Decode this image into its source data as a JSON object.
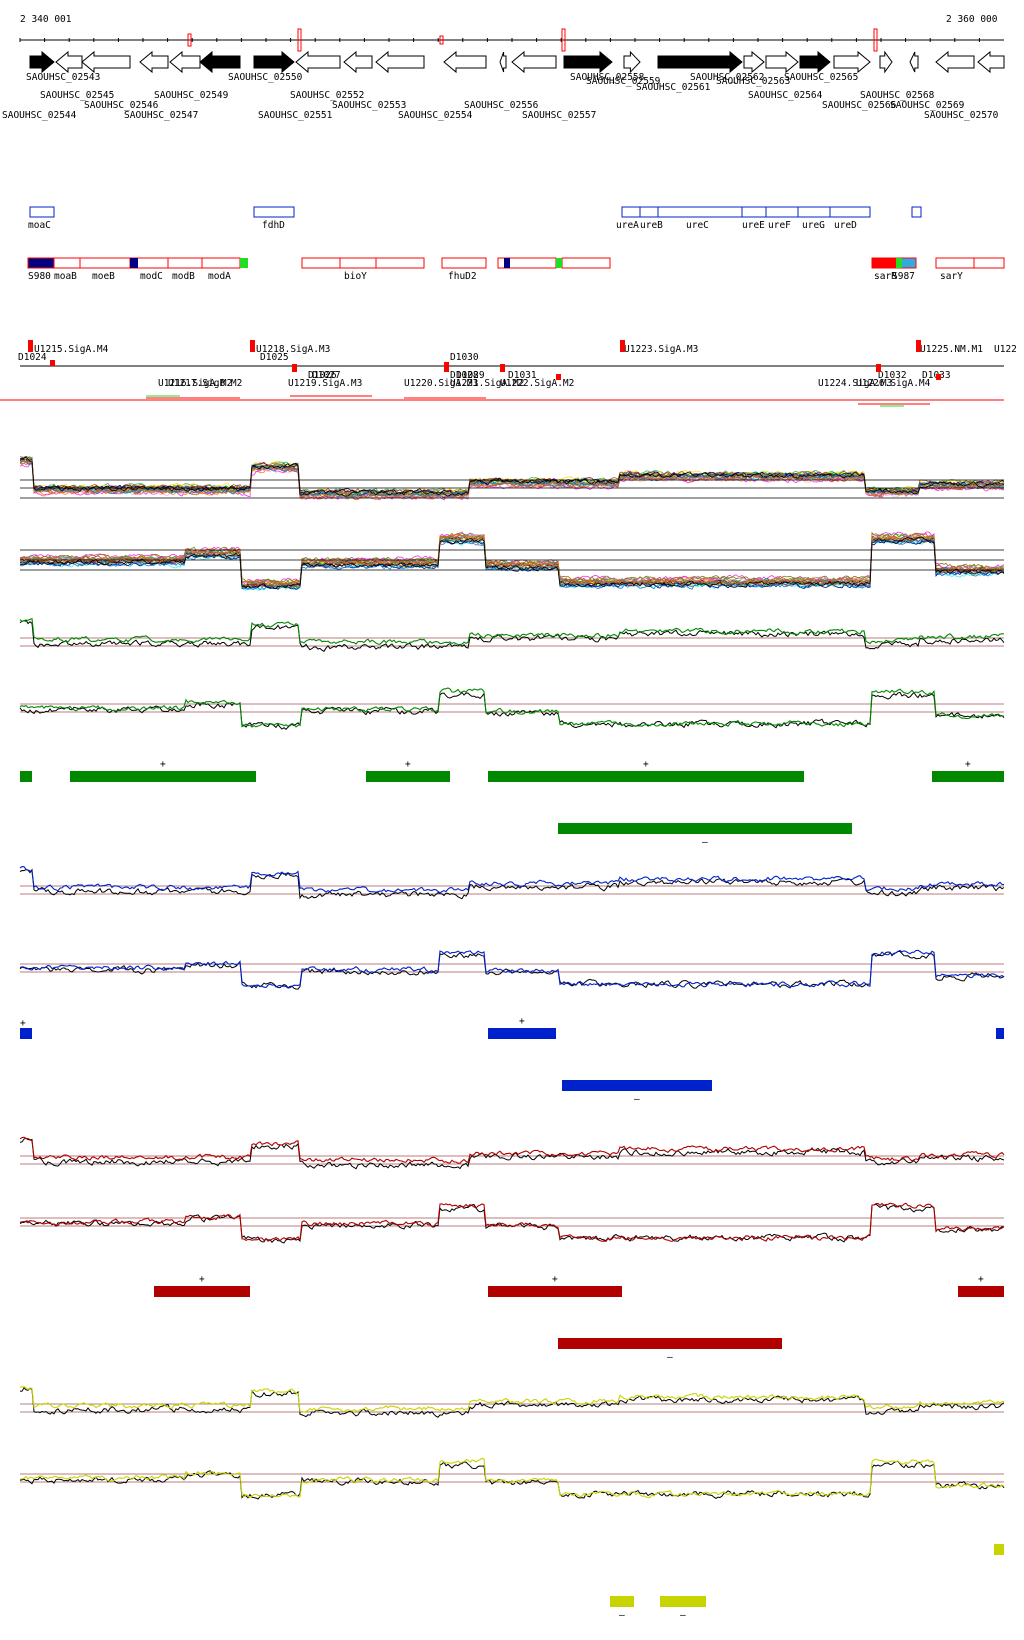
{
  "ruler": {
    "start_label": "2 340 001",
    "end_label": "2 360 000"
  },
  "colors": {
    "green": "#008800",
    "blue": "#0022cc",
    "red": "#b00000",
    "yellow": "#c8d400",
    "navy": "#000080",
    "cyan": "#33aadd",
    "bright_red": "#ff0000",
    "bright_green": "#22dd22"
  },
  "genes": [
    {
      "id": "SAOUHSC_02543",
      "fill": "black",
      "dir": "+"
    },
    {
      "id": "SAOUHSC_02544",
      "fill": "white",
      "dir": "-"
    },
    {
      "id": "SAOUHSC_02545",
      "fill": "white",
      "dir": "-"
    },
    {
      "id": "SAOUHSC_02546",
      "fill": "white",
      "dir": "-"
    },
    {
      "id": "SAOUHSC_02547",
      "fill": "white",
      "dir": "-"
    },
    {
      "id": "SAOUHSC_02549",
      "fill": "black",
      "dir": "-"
    },
    {
      "id": "SAOUHSC_02550",
      "fill": "black",
      "dir": "+"
    },
    {
      "id": "SAOUHSC_02551",
      "fill": "white",
      "dir": "-"
    },
    {
      "id": "SAOUHSC_02552",
      "fill": "white",
      "dir": "-"
    },
    {
      "id": "SAOUHSC_02553",
      "fill": "white",
      "dir": "-"
    },
    {
      "id": "SAOUHSC_02554",
      "fill": "white",
      "dir": "-"
    },
    {
      "id": "SAOUHSC_02556",
      "fill": "white",
      "dir": "-"
    },
    {
      "id": "SAOUHSC_02557",
      "fill": "white",
      "dir": "-"
    },
    {
      "id": "SAOUHSC_02558",
      "fill": "black",
      "dir": "+"
    },
    {
      "id": "SAOUHSC_02559",
      "fill": "white",
      "dir": "+"
    },
    {
      "id": "SAOUHSC_02561",
      "fill": "black",
      "dir": "+"
    },
    {
      "id": "SAOUHSC_02562",
      "fill": "white",
      "dir": "+"
    },
    {
      "id": "SAOUHSC_02563",
      "fill": "white",
      "dir": "+"
    },
    {
      "id": "SAOUHSC_02564",
      "fill": "black",
      "dir": "+"
    },
    {
      "id": "SAOUHSC_02565",
      "fill": "white",
      "dir": "+"
    },
    {
      "id": "SAOUHSC_02566",
      "fill": "white",
      "dir": "+"
    },
    {
      "id": "SAOUHSC_02568",
      "fill": "white",
      "dir": "-"
    },
    {
      "id": "SAOUHSC_02569",
      "fill": "white",
      "dir": "-"
    },
    {
      "id": "SAOUHSC_02570",
      "fill": "white",
      "dir": "-"
    }
  ],
  "blue_features": [
    "moaC",
    "fdhD",
    "ureA",
    "ureB",
    "ureC",
    "ureE",
    "ureF",
    "ureG",
    "ureD"
  ],
  "red_features": [
    "S980",
    "moaB",
    "moeB",
    "modC",
    "modB",
    "modA",
    "bioY",
    "fhuD2",
    "sarR",
    "S987",
    "sarY"
  ],
  "transcripts": {
    "above": [
      "U1215.SigA.M4",
      "U1218.SigA.M3",
      "U1223.SigA.M3",
      "U1225.NM.M1",
      "U122",
      "D1024",
      "D1025",
      "D1030"
    ],
    "below": [
      "U1216.SigA.M2",
      "U1217.SigB.M2",
      "U1219.SigA.M3",
      "D1026",
      "D1027",
      "U1220.SigA.M3",
      "D1028",
      "D1029",
      "D1031",
      "U1221.SigA.M2",
      "U1222.SigA.M2",
      "U1224.SigA.M3",
      "U1226.SigA.M4",
      "D1032",
      "D1033"
    ]
  },
  "segment_signs": {
    "plus": "+",
    "minus": "–"
  }
}
